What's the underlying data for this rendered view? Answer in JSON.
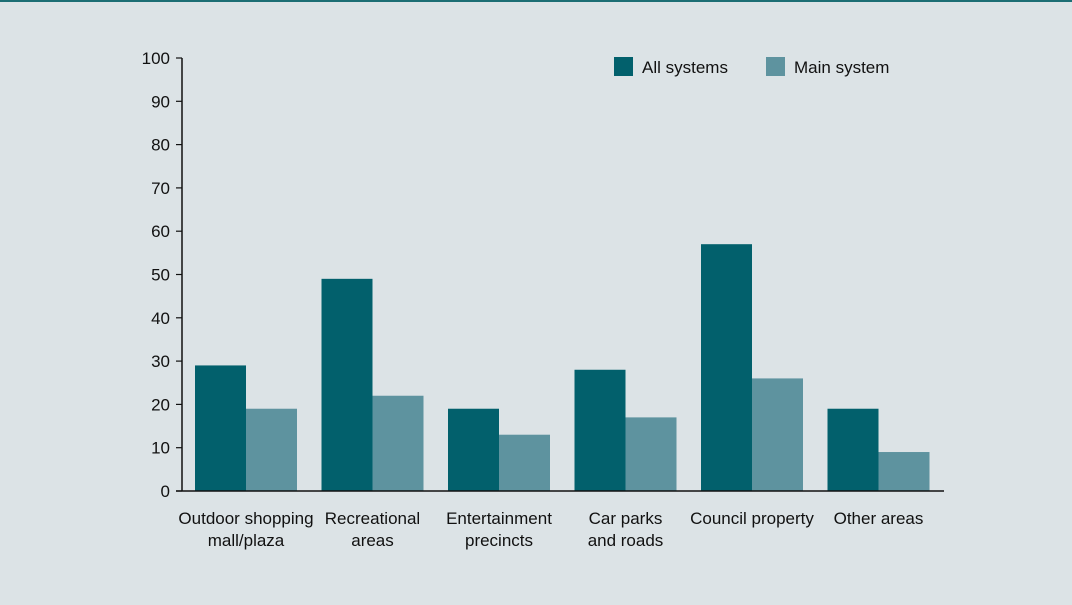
{
  "colors": {
    "background": "#dce3e6",
    "top_rule": "#1c6e74",
    "all_systems": "#02606c",
    "main_system": "#5e939f",
    "axis": "#111111"
  },
  "chart_data": {
    "type": "bar",
    "title": "",
    "xlabel": "",
    "ylabel": "",
    "ylim": [
      0,
      100
    ],
    "yticks": [
      0,
      10,
      20,
      30,
      40,
      50,
      60,
      70,
      80,
      90,
      100
    ],
    "grid": false,
    "legend_position": "top-right",
    "categories": [
      [
        "Outdoor shopping",
        "mall/plaza"
      ],
      [
        "Recreational",
        "areas"
      ],
      [
        "Entertainment",
        "precincts"
      ],
      [
        "Car parks",
        "and roads"
      ],
      [
        "Council property"
      ],
      [
        "Other areas"
      ]
    ],
    "series": [
      {
        "name": "All systems",
        "color": "#02606c",
        "values": [
          29,
          49,
          19,
          28,
          57,
          19
        ]
      },
      {
        "name": "Main system",
        "color": "#5e939f",
        "values": [
          19,
          22,
          13,
          17,
          26,
          9
        ]
      }
    ]
  }
}
